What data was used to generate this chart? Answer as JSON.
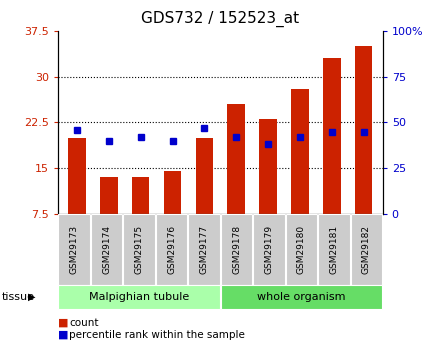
{
  "title": "GDS732 / 152523_at",
  "categories": [
    "GSM29173",
    "GSM29174",
    "GSM29175",
    "GSM29176",
    "GSM29177",
    "GSM29178",
    "GSM29179",
    "GSM29180",
    "GSM29181",
    "GSM29182"
  ],
  "count_values": [
    20.0,
    13.5,
    13.5,
    14.5,
    20.0,
    25.5,
    23.0,
    28.0,
    33.0,
    35.0
  ],
  "percentile_values": [
    46,
    40,
    42,
    40,
    47,
    42,
    38,
    42,
    45,
    45
  ],
  "ylim_left": [
    7.5,
    37.5
  ],
  "ylim_right": [
    0,
    100
  ],
  "yticks_left": [
    7.5,
    15.0,
    22.5,
    30.0,
    37.5
  ],
  "yticks_right": [
    0,
    25,
    50,
    75,
    100
  ],
  "ytick_labels_left": [
    "7.5",
    "15",
    "22.5",
    "30",
    "37.5"
  ],
  "ytick_labels_right": [
    "0",
    "25",
    "50",
    "75",
    "100%"
  ],
  "grid_yticks": [
    15.0,
    22.5,
    30.0
  ],
  "bar_color": "#cc2200",
  "dot_color": "#0000cc",
  "bar_width": 0.55,
  "tissue_groups": [
    {
      "label": "Malpighian tubule",
      "start": 0,
      "end": 4,
      "color": "#aaffaa"
    },
    {
      "label": "whole organism",
      "start": 5,
      "end": 9,
      "color": "#66dd66"
    }
  ],
  "legend_items": [
    {
      "color": "#cc2200",
      "label": "count"
    },
    {
      "color": "#0000cc",
      "label": "percentile rank within the sample"
    }
  ],
  "tissue_label": "tissue",
  "left_color": "#cc2200",
  "right_color": "#0000cc"
}
